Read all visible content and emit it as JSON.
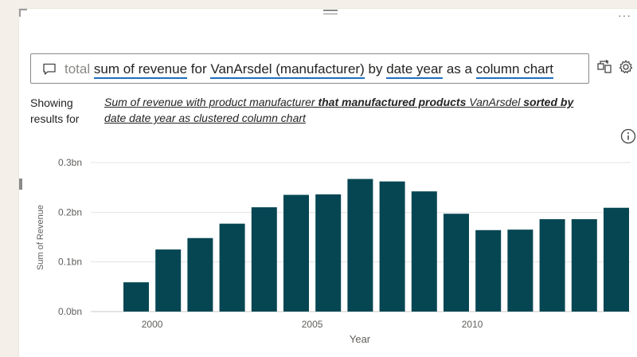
{
  "question": {
    "prefix": "total",
    "term1": "sum of revenue",
    "word1": "for",
    "term2": "VanArsdel (manufacturer)",
    "word2": "by",
    "term3": "date year",
    "word3": "as a",
    "term4": "column chart"
  },
  "showing": {
    "line1": "Showing",
    "line2": "results for"
  },
  "interpretation": {
    "p1": "Sum of revenue with product manufacturer ",
    "b1": "that manufactured products",
    "p2": " VanArsdel ",
    "b2": "sorted by",
    "p3": " date date year as clustered column chart"
  },
  "icons": {
    "chat": "chat-bubble-icon",
    "turn_into_visual": "turn-into-visual-icon",
    "settings": "gear-icon",
    "info": "info-icon",
    "more": "more-options-icon",
    "drag": "drag-handle-icon"
  },
  "colors": {
    "bar": "#064653",
    "underline": "#1f6fc1",
    "grid": "#e3e3e3",
    "axis_text": "#605e5c"
  },
  "chart_data": {
    "type": "bar",
    "ylabel": "Sum of Revenue",
    "xlabel": "Year",
    "ylim": [
      0,
      0.3
    ],
    "yticks": [
      0.0,
      0.1,
      0.2,
      0.3
    ],
    "ytick_labels": [
      "0.0bn",
      "0.1bn",
      "0.2bn",
      "0.3bn"
    ],
    "xtick_years": [
      2000,
      2005,
      2010
    ],
    "grid": true,
    "categories": [
      1999,
      2000,
      2001,
      2002,
      2003,
      2004,
      2005,
      2006,
      2007,
      2008,
      2009,
      2010,
      2011,
      2012,
      2013,
      2014
    ],
    "values": [
      0.059,
      0.125,
      0.148,
      0.177,
      0.21,
      0.235,
      0.236,
      0.267,
      0.262,
      0.242,
      0.197,
      0.164,
      0.165,
      0.186,
      0.186,
      0.209
    ]
  }
}
